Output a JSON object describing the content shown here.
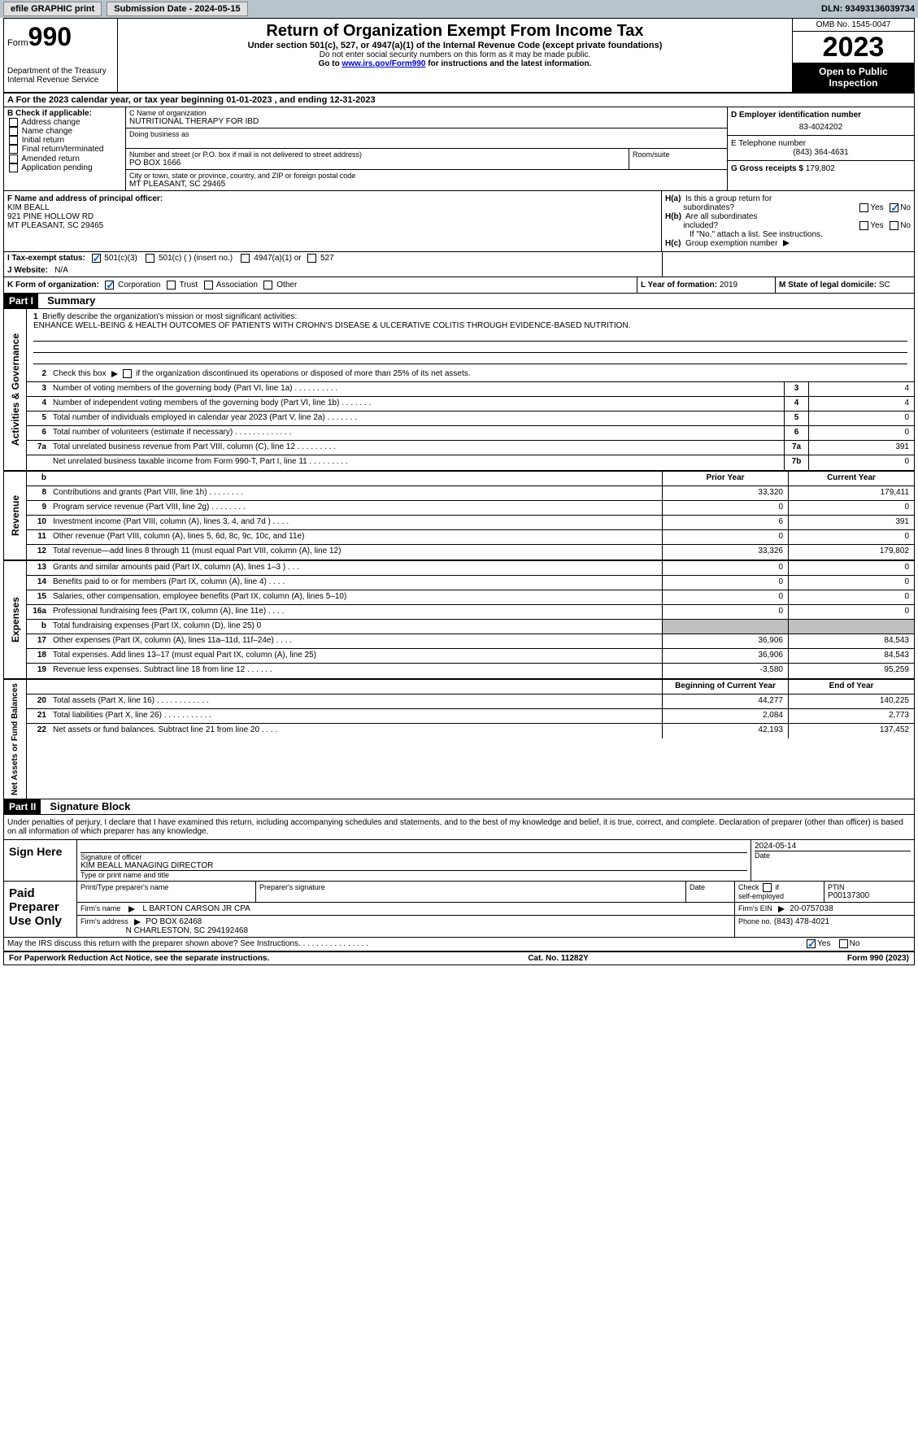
{
  "topbar": {
    "efile": "efile GRAPHIC print",
    "submission": "Submission Date - 2024-05-15",
    "dln": "DLN: 93493136039734"
  },
  "header": {
    "form_prefix": "Form",
    "form_num": "990",
    "dept": "Department of the Treasury\nInternal Revenue Service",
    "title": "Return of Organization Exempt From Income Tax",
    "sub": "Under section 501(c), 527, or 4947(a)(1) of the Internal Revenue Code (except private foundations)",
    "note": "Do not enter social security numbers on this form as it may be made public.",
    "goto": "Go to www.irs.gov/Form990 for instructions and the latest information.",
    "goto_link": "www.irs.gov/Form990",
    "omb": "OMB No. 1545-0047",
    "year": "2023",
    "open": "Open to Public Inspection"
  },
  "lineA": "A For the 2023 calendar year, or tax year beginning 01-01-2023    , and ending 12-31-2023",
  "boxB": {
    "label": "B Check if applicable:",
    "items": [
      "Address change",
      "Name change",
      "Initial return",
      "Final return/terminated",
      "Amended return",
      "Application pending"
    ]
  },
  "boxC": {
    "name_label": "C Name of organization",
    "name": "NUTRITIONAL THERAPY FOR IBD",
    "dba_label": "Doing business as",
    "addr_label": "Number and street (or P.O. box if mail is not delivered to street address)",
    "addr": "PO BOX 1666",
    "room_label": "Room/suite",
    "city_label": "City or town, state or province, country, and ZIP or foreign postal code",
    "city": "MT PLEASANT, SC  29465"
  },
  "boxD": {
    "label": "D Employer identification number",
    "val": "83-4024202"
  },
  "boxE": {
    "label": "E Telephone number",
    "val": "(843) 364-4631"
  },
  "boxG": {
    "label": "G Gross receipts $",
    "val": "179,802"
  },
  "boxF": {
    "label": "F  Name and address of principal officer:",
    "name": "KIM BEALL",
    "addr1": "921 PINE HOLLOW RD",
    "addr2": "MT PLEASANT, SC  29465"
  },
  "boxH": {
    "a": "H(a)  Is this a group return for subordinates?",
    "b": "H(b)  Are all subordinates included?",
    "bnote": "If \"No,\" attach a list. See instructions.",
    "c": "H(c)  Group exemption number",
    "yes": "Yes",
    "no": "No"
  },
  "lineI": {
    "label": "I    Tax-exempt status:",
    "opts": [
      "501(c)(3)",
      "501(c) (  ) (insert no.)",
      "4947(a)(1) or",
      "527"
    ]
  },
  "lineJ": {
    "label": "J    Website:",
    "val": "N/A"
  },
  "lineK": {
    "label": "K Form of organization:",
    "opts": [
      "Corporation",
      "Trust",
      "Association",
      "Other"
    ]
  },
  "lineL": {
    "label": "L Year of formation:",
    "val": "2019"
  },
  "lineM": {
    "label": "M State of legal domicile:",
    "val": "SC"
  },
  "partI": {
    "header": "Part I",
    "title": "Summary"
  },
  "summary": {
    "q1_label": "Briefly describe the organization's mission or most significant activities:",
    "q1_text": "ENHANCE WELL-BEING & HEALTH OUTCOMES OF PATIENTS WITH CROHN'S DISEASE & ULCERATIVE COLITIS THROUGH EVIDENCE-BASED NUTRITION.",
    "q2": "Check this box        if the organization discontinued its operations or disposed of more than 25% of its net assets.",
    "lines_a": [
      {
        "n": "3",
        "t": "Number of voting members of the governing body (Part VI, line 1a)   .    .    .    .    .    .    .    .    .    .",
        "box": "3",
        "v": "4"
      },
      {
        "n": "4",
        "t": "Number of independent voting members of the governing body (Part VI, line 1b)   .    .    .    .    .    .    .",
        "box": "4",
        "v": "4"
      },
      {
        "n": "5",
        "t": "Total number of individuals employed in calendar year 2023 (Part V, line 2a)   .    .    .    .    .    .    .",
        "box": "5",
        "v": "0"
      },
      {
        "n": "6",
        "t": "Total number of volunteers (estimate if necessary)    .    .    .    .    .    .    .    .    .    .    .    .    .",
        "box": "6",
        "v": "0"
      },
      {
        "n": "7a",
        "t": "Total unrelated business revenue from Part VIII, column (C), line 12   .    .    .    .    .    .    .    .    .",
        "box": "7a",
        "v": "391"
      },
      {
        "n": "",
        "t": "Net unrelated business taxable income from Form 990-T, Part I, line 11   .    .    .    .    .    .    .    .    .",
        "box": "7b",
        "v": "0"
      }
    ],
    "col_prior": "Prior Year",
    "col_current": "Current Year",
    "revenue": [
      {
        "n": "8",
        "t": "Contributions and grants (Part VIII, line 1h)    .    .    .    .    .    .    .    .",
        "p": "33,320",
        "c": "179,411"
      },
      {
        "n": "9",
        "t": "Program service revenue (Part VIII, line 2g)    .    .    .    .    .    .    .    .",
        "p": "0",
        "c": "0"
      },
      {
        "n": "10",
        "t": "Investment income (Part VIII, column (A), lines 3, 4, and 7d )    .    .    .    .",
        "p": "6",
        "c": "391"
      },
      {
        "n": "11",
        "t": "Other revenue (Part VIII, column (A), lines 5, 6d, 8c, 9c, 10c, and 11e)",
        "p": "0",
        "c": "0"
      },
      {
        "n": "12",
        "t": "Total revenue—add lines 8 through 11 (must equal Part VIII, column (A), line 12)",
        "p": "33,326",
        "c": "179,802"
      }
    ],
    "expenses": [
      {
        "n": "13",
        "t": "Grants and similar amounts paid (Part IX, column (A), lines 1–3 )   .    .    .",
        "p": "0",
        "c": "0"
      },
      {
        "n": "14",
        "t": "Benefits paid to or for members (Part IX, column (A), line 4)   .    .    .    .",
        "p": "0",
        "c": "0"
      },
      {
        "n": "15",
        "t": "Salaries, other compensation, employee benefits (Part IX, column (A), lines 5–10)",
        "p": "0",
        "c": "0"
      },
      {
        "n": "16a",
        "t": "Professional fundraising fees (Part IX, column (A), line 11e)   .    .    .    .",
        "p": "0",
        "c": "0"
      },
      {
        "n": "b",
        "t": "Total fundraising expenses (Part IX, column (D), line 25) 0",
        "p": "",
        "c": "",
        "shaded": true
      },
      {
        "n": "17",
        "t": "Other expenses (Part IX, column (A), lines 11a–11d, 11f–24e)   .    .    .    .",
        "p": "36,906",
        "c": "84,543"
      },
      {
        "n": "18",
        "t": "Total expenses. Add lines 13–17 (must equal Part IX, column (A), line 25)",
        "p": "36,906",
        "c": "84,543"
      },
      {
        "n": "19",
        "t": "Revenue less expenses. Subtract line 18 from line 12   .    .    .    .    .    .",
        "p": "-3,580",
        "c": "95,259"
      }
    ],
    "col_begin": "Beginning of Current Year",
    "col_end": "End of Year",
    "netassets": [
      {
        "n": "20",
        "t": "Total assets (Part X, line 16)   .    .    .    .    .    .    .    .    .    .    .    .",
        "p": "44,277",
        "c": "140,225"
      },
      {
        "n": "21",
        "t": "Total liabilities (Part X, line 26)   .    .    .    .    .    .    .    .    .    .    .",
        "p": "2,084",
        "c": "2,773"
      },
      {
        "n": "22",
        "t": "Net assets or fund balances. Subtract line 21 from line 20   .    .    .    .",
        "p": "42,193",
        "c": "137,452"
      }
    ],
    "vert_gov": "Activities & Governance",
    "vert_rev": "Revenue",
    "vert_exp": "Expenses",
    "vert_net": "Net Assets or Fund Balances"
  },
  "partII": {
    "header": "Part II",
    "title": "Signature Block"
  },
  "sig": {
    "perjury": "Under penalties of perjury, I declare that I have examined this return, including accompanying schedules and statements, and to the best of my knowledge and belief, it is true, correct, and complete. Declaration of preparer (other than officer) is based on all information of which preparer has any knowledge.",
    "sign_here": "Sign Here",
    "sig_officer": "Signature of officer",
    "officer_name": "KIM BEALL MANAGING DIRECTOR",
    "type_name": "Type or print name and title",
    "date": "Date",
    "date_val": "2024-05-14",
    "paid": "Paid Preparer Use Only",
    "print_name": "Print/Type preparer's name",
    "prep_sig": "Preparer's signature",
    "check_self": "Check          if self-employed",
    "ptin": "PTIN",
    "ptin_val": "P00137300",
    "firm_name_label": "Firm's name",
    "firm_name": "L BARTON CARSON JR CPA",
    "firm_ein_label": "Firm's EIN",
    "firm_ein": "20-0757038",
    "firm_addr_label": "Firm's address",
    "firm_addr1": "PO BOX 62468",
    "firm_addr2": "N CHARLESTON, SC  294192468",
    "phone_label": "Phone no.",
    "phone": "(843) 478-4021",
    "discuss": "May the IRS discuss this return with the preparer shown above? See Instructions.    .    .    .    .    .    .    .    .    .    .    .    .    .    .    ."
  },
  "footer": {
    "left": "For Paperwork Reduction Act Notice, see the separate instructions.",
    "mid": "Cat. No. 11282Y",
    "right": "Form 990 (2023)"
  },
  "colors": {
    "topbar_bg": "#b8c4cc",
    "link": "#0000cc",
    "check": "#0066cc",
    "black": "#000000",
    "shade": "#c0c0c0"
  }
}
